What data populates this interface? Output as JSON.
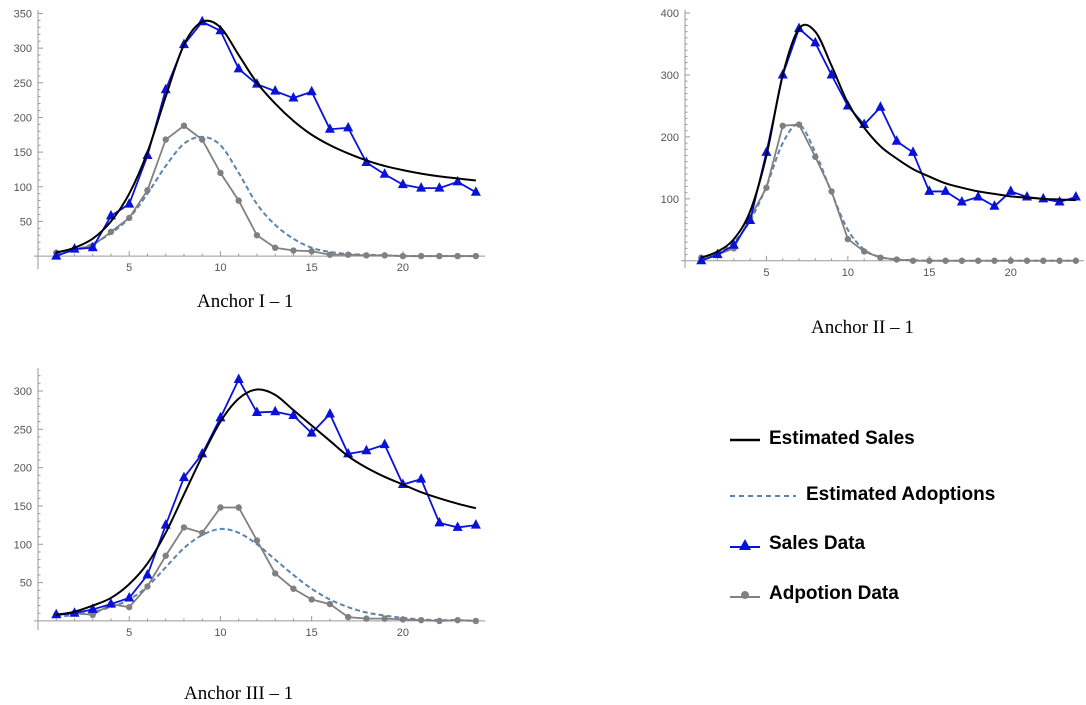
{
  "legend": {
    "items": [
      {
        "label": "Estimated Sales",
        "color": "#000000",
        "style": "solid"
      },
      {
        "label": "Estimated Adoptions",
        "color": "#5b84b1",
        "style": "dashed"
      },
      {
        "label": "Sales Data",
        "color": "#0a12d8",
        "style": "triangle"
      },
      {
        "label": "Adpotion Data",
        "color": "#808080",
        "style": "circle"
      }
    ]
  },
  "colors": {
    "estimated_sales": "#000000",
    "estimated_adoptions": "#5b84b1",
    "sales_data": "#0a12d8",
    "adoption_data": "#808080",
    "axis": "#999999"
  },
  "chart_data": [
    {
      "type": "line",
      "title": "Anchor I – 1",
      "xlim": [
        0,
        24.5
      ],
      "ylim": [
        -10,
        355
      ],
      "xticks": [
        5,
        10,
        15,
        20
      ],
      "yticks": [
        50,
        100,
        150,
        200,
        250,
        300,
        350
      ],
      "x": [
        1,
        2,
        3,
        4,
        5,
        6,
        7,
        8,
        9,
        10,
        11,
        12,
        13,
        14,
        15,
        16,
        17,
        18,
        19,
        20,
        21,
        22,
        23,
        24
      ],
      "series": [
        {
          "name": "Estimated Sales",
          "kind": "curve",
          "values": [
            5,
            12,
            25,
            50,
            90,
            150,
            230,
            305,
            338,
            330,
            290,
            250,
            220,
            195,
            175,
            160,
            148,
            138,
            130,
            124,
            119,
            115,
            112,
            109
          ]
        },
        {
          "name": "Estimated Adoptions",
          "kind": "curve",
          "values": [
            3,
            8,
            18,
            33,
            55,
            90,
            130,
            162,
            172,
            160,
            120,
            75,
            45,
            25,
            12,
            6,
            3,
            2,
            1,
            0,
            0,
            0,
            0,
            0
          ]
        },
        {
          "name": "Sales Data",
          "kind": "triangle",
          "values": [
            0,
            10,
            12,
            58,
            75,
            145,
            240,
            305,
            338,
            325,
            270,
            248,
            238,
            228,
            237,
            183,
            185,
            135,
            118,
            103,
            98,
            98,
            107,
            92
          ]
        },
        {
          "name": "Adpotion Data",
          "kind": "circle",
          "values": [
            5,
            10,
            15,
            35,
            55,
            95,
            168,
            188,
            168,
            120,
            80,
            30,
            12,
            8,
            7,
            2,
            2,
            1,
            1,
            0,
            0,
            0,
            0,
            0
          ]
        }
      ]
    },
    {
      "type": "line",
      "title": "Anchor II – 1",
      "xlim": [
        0,
        24.5
      ],
      "ylim": [
        -2,
        405
      ],
      "xticks": [
        5,
        10,
        15,
        20
      ],
      "yticks": [
        100,
        200,
        300,
        400
      ],
      "x": [
        1,
        2,
        3,
        4,
        5,
        6,
        7,
        8,
        9,
        10,
        11,
        12,
        13,
        14,
        15,
        16,
        17,
        18,
        19,
        20,
        21,
        22,
        23,
        24
      ],
      "series": [
        {
          "name": "Estimated Sales",
          "kind": "curve",
          "values": [
            5,
            15,
            35,
            80,
            170,
            300,
            375,
            370,
            315,
            255,
            215,
            185,
            165,
            148,
            136,
            125,
            118,
            112,
            108,
            104,
            102,
            100,
            99,
            98
          ]
        },
        {
          "name": "Estimated Adoptions",
          "kind": "curve",
          "values": [
            4,
            12,
            30,
            65,
            120,
            190,
            220,
            175,
            110,
            50,
            18,
            6,
            2,
            1,
            0,
            0,
            0,
            0,
            0,
            0,
            0,
            0,
            0,
            0
          ]
        },
        {
          "name": "Sales Data",
          "kind": "triangle",
          "values": [
            0,
            10,
            25,
            65,
            175,
            300,
            375,
            352,
            300,
            250,
            220,
            248,
            193,
            175,
            112,
            112,
            95,
            103,
            88,
            112,
            103,
            100,
            95,
            103
          ]
        },
        {
          "name": "Adpotion Data",
          "kind": "circle",
          "values": [
            5,
            10,
            20,
            70,
            118,
            218,
            220,
            168,
            112,
            35,
            15,
            5,
            2,
            0,
            0,
            0,
            0,
            0,
            0,
            0,
            0,
            0,
            0,
            0
          ]
        }
      ]
    },
    {
      "type": "line",
      "title": "Anchor III – 1",
      "xlim": [
        0,
        24.5
      ],
      "ylim": [
        -4,
        330
      ],
      "xticks": [
        5,
        10,
        15,
        20
      ],
      "yticks": [
        50,
        100,
        150,
        200,
        250,
        300
      ],
      "x": [
        1,
        2,
        3,
        4,
        5,
        6,
        7,
        8,
        9,
        10,
        11,
        12,
        13,
        14,
        15,
        16,
        17,
        18,
        19,
        20,
        21,
        22,
        23,
        24
      ],
      "series": [
        {
          "name": "Estimated Sales",
          "kind": "curve",
          "values": [
            8,
            12,
            20,
            30,
            48,
            75,
            115,
            165,
            215,
            260,
            290,
            302,
            295,
            275,
            255,
            235,
            215,
            200,
            188,
            178,
            168,
            160,
            153,
            147
          ]
        },
        {
          "name": "Estimated Adoptions",
          "kind": "curve",
          "values": [
            5,
            8,
            12,
            18,
            28,
            45,
            70,
            95,
            112,
            120,
            115,
            100,
            80,
            60,
            42,
            28,
            18,
            11,
            7,
            4,
            2,
            1,
            1,
            0
          ]
        },
        {
          "name": "Sales Data",
          "kind": "triangle",
          "values": [
            8,
            10,
            15,
            22,
            30,
            60,
            125,
            187,
            218,
            265,
            315,
            272,
            273,
            268,
            245,
            270,
            218,
            222,
            230,
            178,
            185,
            128,
            122,
            125
          ]
        },
        {
          "name": "Adpotion Data",
          "kind": "circle",
          "values": [
            8,
            10,
            8,
            22,
            18,
            45,
            85,
            122,
            115,
            148,
            148,
            105,
            62,
            42,
            28,
            22,
            5,
            3,
            3,
            2,
            1,
            0,
            1,
            0
          ]
        }
      ]
    }
  ]
}
